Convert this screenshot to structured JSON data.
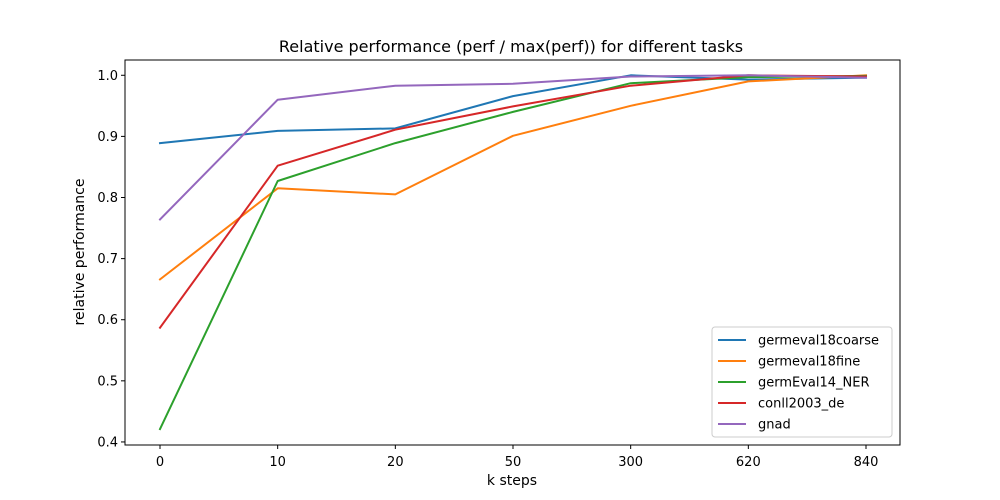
{
  "chart_data": {
    "type": "line",
    "title": "Relative performance (perf / max(perf)) for different tasks",
    "xlabel": "k steps",
    "ylabel": "relative performance",
    "categories": [
      "0",
      "10",
      "20",
      "50",
      "300",
      "620",
      "840"
    ],
    "ylim": [
      0.395,
      1.025
    ],
    "yticks": [
      0.4,
      0.5,
      0.6,
      0.7,
      0.8,
      0.9,
      1.0
    ],
    "ytick_labels": [
      "0.4",
      "0.5",
      "0.6",
      "0.7",
      "0.8",
      "0.9",
      "1.0"
    ],
    "grid": false,
    "legend_position": "bottom-right",
    "series": [
      {
        "name": "germeval18coarse",
        "color": "#1f77b4",
        "values": [
          0.889,
          0.909,
          0.913,
          0.966,
          1.0,
          0.993,
          0.996
        ]
      },
      {
        "name": "germeval18fine",
        "color": "#ff7f0e",
        "values": [
          0.666,
          0.815,
          0.805,
          0.901,
          0.95,
          0.99,
          1.0
        ]
      },
      {
        "name": "germEval14_NER",
        "color": "#2ca02c",
        "values": [
          0.421,
          0.827,
          0.889,
          0.94,
          0.987,
          0.997,
          0.999
        ]
      },
      {
        "name": "conll2003_de",
        "color": "#d62728",
        "values": [
          0.587,
          0.852,
          0.911,
          0.949,
          0.983,
          1.0,
          0.998
        ]
      },
      {
        "name": "gnad",
        "color": "#9467bd",
        "values": [
          0.764,
          0.96,
          0.983,
          0.986,
          0.998,
          1.0,
          0.996
        ]
      }
    ]
  }
}
